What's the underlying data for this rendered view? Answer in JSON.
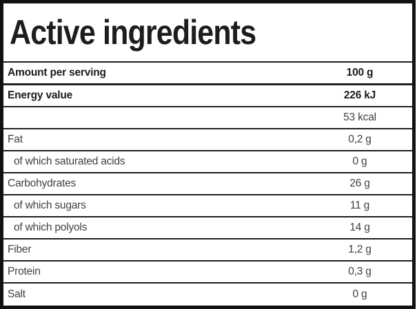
{
  "table": {
    "title": "Active ingredients",
    "rows": [
      {
        "label": "Amount per serving",
        "value": "100 g"
      },
      {
        "label": "Energy value",
        "value": "226 kJ"
      },
      {
        "label": "",
        "value": "53 kcal"
      },
      {
        "label": "Fat",
        "value": "0,2 g"
      },
      {
        "label": "of which saturated acids",
        "value": "0 g"
      },
      {
        "label": "Carbohydrates",
        "value": "26 g"
      },
      {
        "label": "of which sugars",
        "value": "11 g"
      },
      {
        "label": "of which polyols",
        "value": "14 g"
      },
      {
        "label": "Fiber",
        "value": "1,2 g"
      },
      {
        "label": "Protein",
        "value": "0,3 g"
      },
      {
        "label": "Salt",
        "value": "0 g"
      }
    ]
  }
}
